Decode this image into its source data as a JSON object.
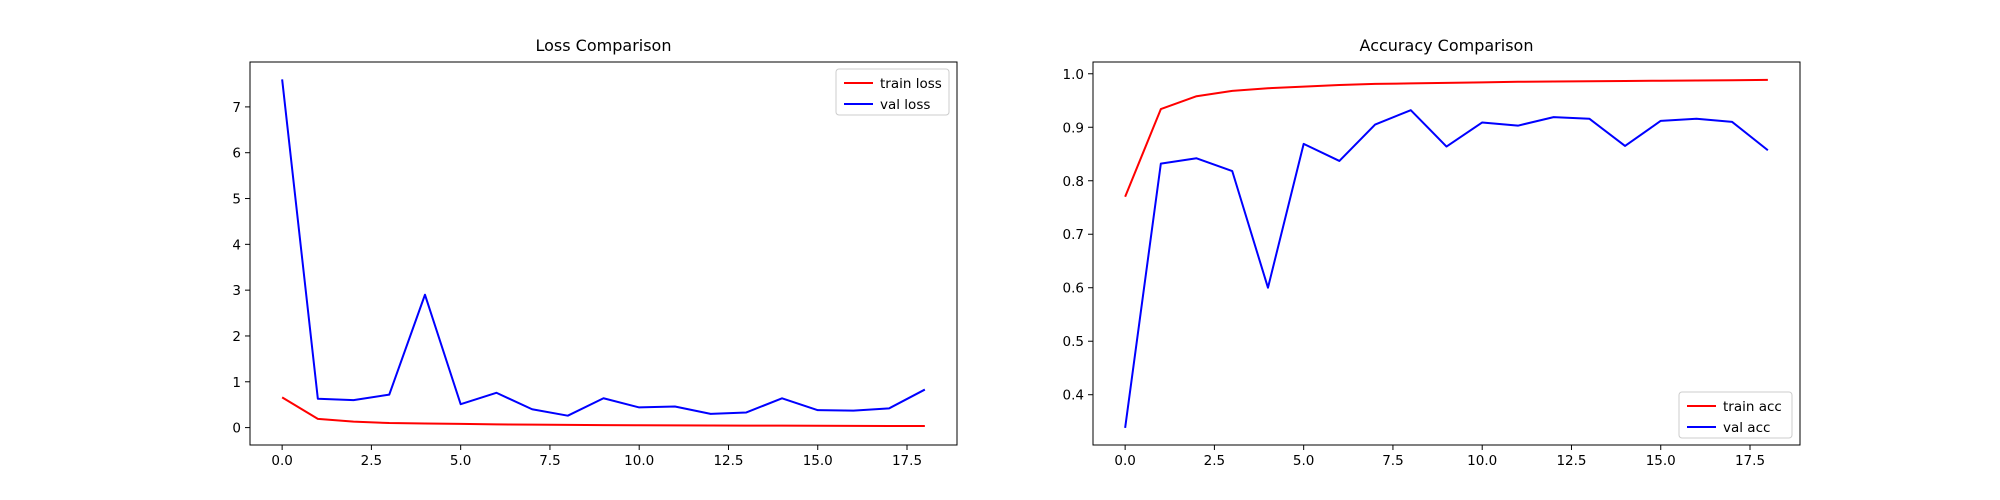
{
  "chart_data": [
    {
      "type": "line",
      "title": "Loss Comparison",
      "xlabel": "",
      "ylabel": "",
      "xlim": [
        -0.9,
        18.9
      ],
      "ylim": [
        -0.38,
        7.98
      ],
      "xticks": [
        0.0,
        2.5,
        5.0,
        7.5,
        10.0,
        12.5,
        15.0,
        17.5
      ],
      "xtick_labels": [
        "0.0",
        "2.5",
        "5.0",
        "7.5",
        "10.0",
        "12.5",
        "15.0",
        "17.5"
      ],
      "yticks": [
        0,
        1,
        2,
        3,
        4,
        5,
        6,
        7
      ],
      "ytick_labels": [
        "0",
        "1",
        "2",
        "3",
        "4",
        "5",
        "6",
        "7"
      ],
      "legend_position": "upper-right",
      "grid": false,
      "x": [
        0,
        1,
        2,
        3,
        4,
        5,
        6,
        7,
        8,
        9,
        10,
        11,
        12,
        13,
        14,
        15,
        16,
        17,
        18
      ],
      "series": [
        {
          "name": "train loss",
          "color": "#ff0000",
          "values": [
            0.66,
            0.19,
            0.13,
            0.1,
            0.09,
            0.08,
            0.07,
            0.065,
            0.06,
            0.055,
            0.05,
            0.048,
            0.046,
            0.044,
            0.042,
            0.04,
            0.038,
            0.036,
            0.035
          ]
        },
        {
          "name": "val loss",
          "color": "#0000ff",
          "values": [
            7.6,
            0.63,
            0.6,
            0.72,
            2.9,
            0.51,
            0.76,
            0.4,
            0.26,
            0.64,
            0.44,
            0.46,
            0.3,
            0.33,
            0.64,
            0.38,
            0.37,
            0.42,
            0.83
          ]
        }
      ]
    },
    {
      "type": "line",
      "title": "Accuracy Comparison",
      "xlabel": "",
      "ylabel": "",
      "xlim": [
        -0.9,
        18.9
      ],
      "ylim": [
        0.306,
        1.022
      ],
      "xticks": [
        0.0,
        2.5,
        5.0,
        7.5,
        10.0,
        12.5,
        15.0,
        17.5
      ],
      "xtick_labels": [
        "0.0",
        "2.5",
        "5.0",
        "7.5",
        "10.0",
        "12.5",
        "15.0",
        "17.5"
      ],
      "yticks": [
        0.4,
        0.5,
        0.6,
        0.7,
        0.8,
        0.9,
        1.0
      ],
      "ytick_labels": [
        "0.4",
        "0.5",
        "0.6",
        "0.7",
        "0.8",
        "0.9",
        "1.0"
      ],
      "legend_position": "lower-right",
      "grid": false,
      "x": [
        0,
        1,
        2,
        3,
        4,
        5,
        6,
        7,
        8,
        9,
        10,
        11,
        12,
        13,
        14,
        15,
        16,
        17,
        18
      ],
      "series": [
        {
          "name": "train acc",
          "color": "#ff0000",
          "values": [
            0.77,
            0.934,
            0.958,
            0.968,
            0.973,
            0.976,
            0.979,
            0.981,
            0.982,
            0.983,
            0.984,
            0.985,
            0.9855,
            0.986,
            0.9865,
            0.987,
            0.9875,
            0.988,
            0.9885
          ]
        },
        {
          "name": "val acc",
          "color": "#0000ff",
          "values": [
            0.338,
            0.832,
            0.842,
            0.818,
            0.6,
            0.869,
            0.837,
            0.905,
            0.932,
            0.864,
            0.909,
            0.903,
            0.919,
            0.916,
            0.865,
            0.912,
            0.916,
            0.91,
            0.857
          ]
        }
      ]
    }
  ]
}
